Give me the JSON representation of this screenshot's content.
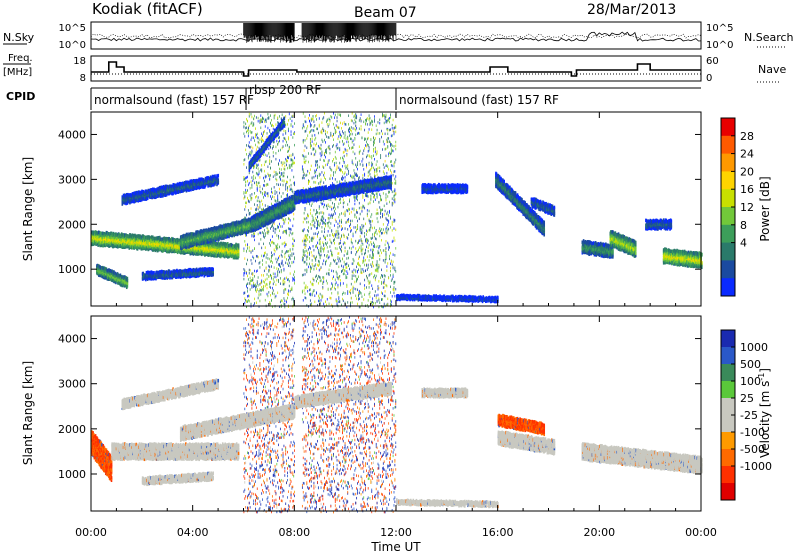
{
  "header": {
    "station": "Kodiak (fitACF)",
    "beam": "Beam 07",
    "date": "28/Mar/2013"
  },
  "side_labels": {
    "nsky": "N.Sky",
    "nsearch": "N.Search",
    "freq": "Freq.",
    "freq_unit": "[MHz]",
    "nave": "Nave",
    "cpid": "CPID"
  },
  "noise_panel": {
    "left_ticks": [
      "10^5",
      "10^0"
    ],
    "right_ticks": [
      "10^5",
      "10^0"
    ]
  },
  "freq_panel": {
    "left_ticks": [
      "18",
      "8"
    ],
    "right_ticks": [
      "60",
      "0"
    ]
  },
  "cpid_panel": {
    "segments": [
      {
        "label": "normalsound (fast) 157 RF",
        "start_hour": 0,
        "end_hour": 6.1
      },
      {
        "label": "rbsp 200 RF",
        "start_hour": 6.1,
        "end_hour": 12.0
      },
      {
        "label": "normalsound (fast) 157 RF",
        "start_hour": 12.0,
        "end_hour": 24
      }
    ]
  },
  "axes": {
    "xlabel": "Time UT",
    "x_ticks": [
      "00:00",
      "04:00",
      "08:00",
      "12:00",
      "16:00",
      "20:00",
      "00:00"
    ],
    "ylabel": "Slant Range [km]",
    "y_ticks": [
      "4000",
      "3000",
      "2000",
      "1000"
    ]
  },
  "power_colorbar": {
    "label": "Power [dB]",
    "ticks": [
      "28",
      "24",
      "20",
      "16",
      "12",
      "8",
      "4"
    ],
    "colors": [
      "#e80000",
      "#ff5a00",
      "#ff9900",
      "#ffd400",
      "#c8e000",
      "#72c83a",
      "#3c9e5a",
      "#2a7a6a",
      "#1a4aa0",
      "#0a2aff"
    ]
  },
  "velocity_colorbar": {
    "label": "Velocity [m s",
    "label_sup": "-1",
    "label_end": "]",
    "ticks": [
      "1000",
      "500",
      "100",
      "25",
      "-25",
      "-100",
      "-500",
      "-1000"
    ],
    "colors": [
      "#1a2ab0",
      "#2a58c8",
      "#3a8a5a",
      "#5ac83a",
      "#c8c8c0",
      "#c8c8c0",
      "#ff9a00",
      "#ff6a00",
      "#ff3000",
      "#e00000"
    ]
  },
  "chart_data": [
    {
      "type": "heatmap",
      "title": "Power",
      "x_range_hours": [
        0,
        24
      ],
      "y_range_km": [
        180,
        4500
      ],
      "features": [
        {
          "kind": "band",
          "t0": 0.0,
          "t1": 5.8,
          "r0": 1700,
          "r1": 1400,
          "width": 260,
          "value": 20
        },
        {
          "kind": "band",
          "t0": 3.5,
          "t1": 6.3,
          "r0": 1600,
          "r1": 2000,
          "width": 250,
          "value": 14
        },
        {
          "kind": "band",
          "t0": 6.3,
          "t1": 8.0,
          "r0": 2000,
          "r1": 2500,
          "width": 300,
          "value": 12
        },
        {
          "kind": "band",
          "t0": 1.2,
          "t1": 5.0,
          "r0": 2550,
          "r1": 3000,
          "width": 160,
          "value": 8
        },
        {
          "kind": "band",
          "t0": 6.2,
          "t1": 7.6,
          "r0": 3300,
          "r1": 4300,
          "width": 140,
          "value": 8
        },
        {
          "kind": "band",
          "t0": 2.0,
          "t1": 4.8,
          "r0": 850,
          "r1": 950,
          "width": 120,
          "value": 8
        },
        {
          "kind": "band",
          "t0": 0.2,
          "t1": 1.4,
          "r0": 1000,
          "r1": 700,
          "width": 180,
          "value": 16
        },
        {
          "kind": "band",
          "t0": 8.0,
          "t1": 11.8,
          "r0": 2600,
          "r1": 2950,
          "width": 220,
          "value": 8
        },
        {
          "kind": "band",
          "t0": 13.0,
          "t1": 14.8,
          "r0": 2800,
          "r1": 2800,
          "width": 140,
          "value": 6
        },
        {
          "kind": "band",
          "t0": 15.9,
          "t1": 17.8,
          "r0": 3000,
          "r1": 1900,
          "width": 260,
          "value": 10
        },
        {
          "kind": "band",
          "t0": 17.3,
          "t1": 18.2,
          "r0": 2500,
          "r1": 2300,
          "width": 160,
          "value": 8
        },
        {
          "kind": "band",
          "t0": 19.3,
          "t1": 20.5,
          "r0": 1500,
          "r1": 1400,
          "width": 240,
          "value": 12
        },
        {
          "kind": "band",
          "t0": 20.4,
          "t1": 21.4,
          "r0": 1700,
          "r1": 1450,
          "width": 300,
          "value": 18
        },
        {
          "kind": "band",
          "t0": 22.5,
          "t1": 24.0,
          "r0": 1300,
          "r1": 1200,
          "width": 280,
          "value": 20
        },
        {
          "kind": "band",
          "t0": 12.0,
          "t1": 16.0,
          "r0": 380,
          "r1": 330,
          "width": 60,
          "value": 6
        },
        {
          "kind": "band",
          "t0": 21.8,
          "t1": 22.8,
          "r0": 2000,
          "r1": 2000,
          "width": 160,
          "value": 8
        }
      ],
      "noise_intervals_hours": [
        [
          6.0,
          8.0
        ],
        [
          8.3,
          12.0
        ]
      ]
    },
    {
      "type": "heatmap",
      "title": "Velocity",
      "x_range_hours": [
        0,
        24
      ],
      "y_range_km": [
        180,
        4500
      ],
      "features": [
        {
          "kind": "band",
          "t0": 0.0,
          "t1": 0.8,
          "r0": 1700,
          "r1": 1100,
          "width": 500,
          "value": -500
        },
        {
          "kind": "band",
          "t0": 0.8,
          "t1": 5.8,
          "r0": 1500,
          "r1": 1500,
          "width": 300,
          "value": 0
        },
        {
          "kind": "band",
          "t0": 3.5,
          "t1": 8.0,
          "r0": 1900,
          "r1": 2400,
          "width": 260,
          "value": 0
        },
        {
          "kind": "band",
          "t0": 1.2,
          "t1": 5.0,
          "r0": 2550,
          "r1": 3000,
          "width": 160,
          "value": 0
        },
        {
          "kind": "band",
          "t0": 2.0,
          "t1": 4.8,
          "r0": 850,
          "r1": 950,
          "width": 120,
          "value": 0
        },
        {
          "kind": "band",
          "t0": 8.0,
          "t1": 11.8,
          "r0": 2600,
          "r1": 2900,
          "width": 220,
          "value": 0
        },
        {
          "kind": "band",
          "t0": 13.0,
          "t1": 14.8,
          "r0": 2800,
          "r1": 2800,
          "width": 140,
          "value": 0
        },
        {
          "kind": "band",
          "t0": 16.0,
          "t1": 17.8,
          "r0": 2200,
          "r1": 2000,
          "width": 200,
          "value": -500
        },
        {
          "kind": "band",
          "t0": 16.0,
          "t1": 18.2,
          "r0": 1800,
          "r1": 1600,
          "width": 260,
          "value": 0
        },
        {
          "kind": "band",
          "t0": 19.3,
          "t1": 24.0,
          "r0": 1500,
          "r1": 1200,
          "width": 320,
          "value": 0
        },
        {
          "kind": "band",
          "t0": 12.0,
          "t1": 16.0,
          "r0": 380,
          "r1": 330,
          "width": 60,
          "value": 0
        }
      ],
      "noise_intervals_hours": [
        [
          6.0,
          8.0
        ],
        [
          8.3,
          12.0
        ]
      ]
    }
  ]
}
